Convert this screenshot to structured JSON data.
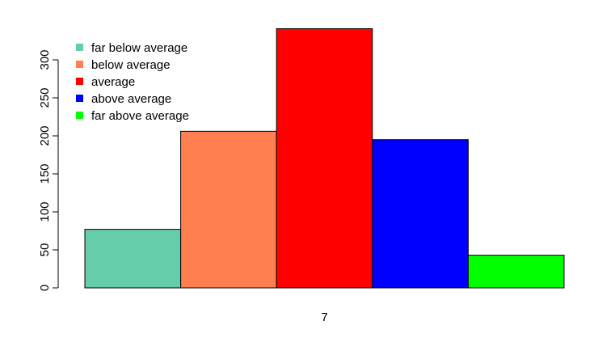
{
  "chart_data": {
    "type": "bar",
    "title": "",
    "xlabel": "",
    "ylabel": "",
    "group_label": "7",
    "ylim": [
      0,
      340
    ],
    "yticks": [
      0,
      50,
      100,
      150,
      200,
      250,
      300
    ],
    "grid": false,
    "legend_position": "top-left",
    "series": [
      {
        "name": "far below average",
        "value": 77,
        "color": "#66CDAA"
      },
      {
        "name": "below average",
        "value": 206,
        "color": "#FF7F50"
      },
      {
        "name": "average",
        "value": 341,
        "color": "#FF0000"
      },
      {
        "name": "above average",
        "value": 195,
        "color": "#0000FF"
      },
      {
        "name": "far above average",
        "value": 43,
        "color": "#00FF00"
      }
    ]
  }
}
